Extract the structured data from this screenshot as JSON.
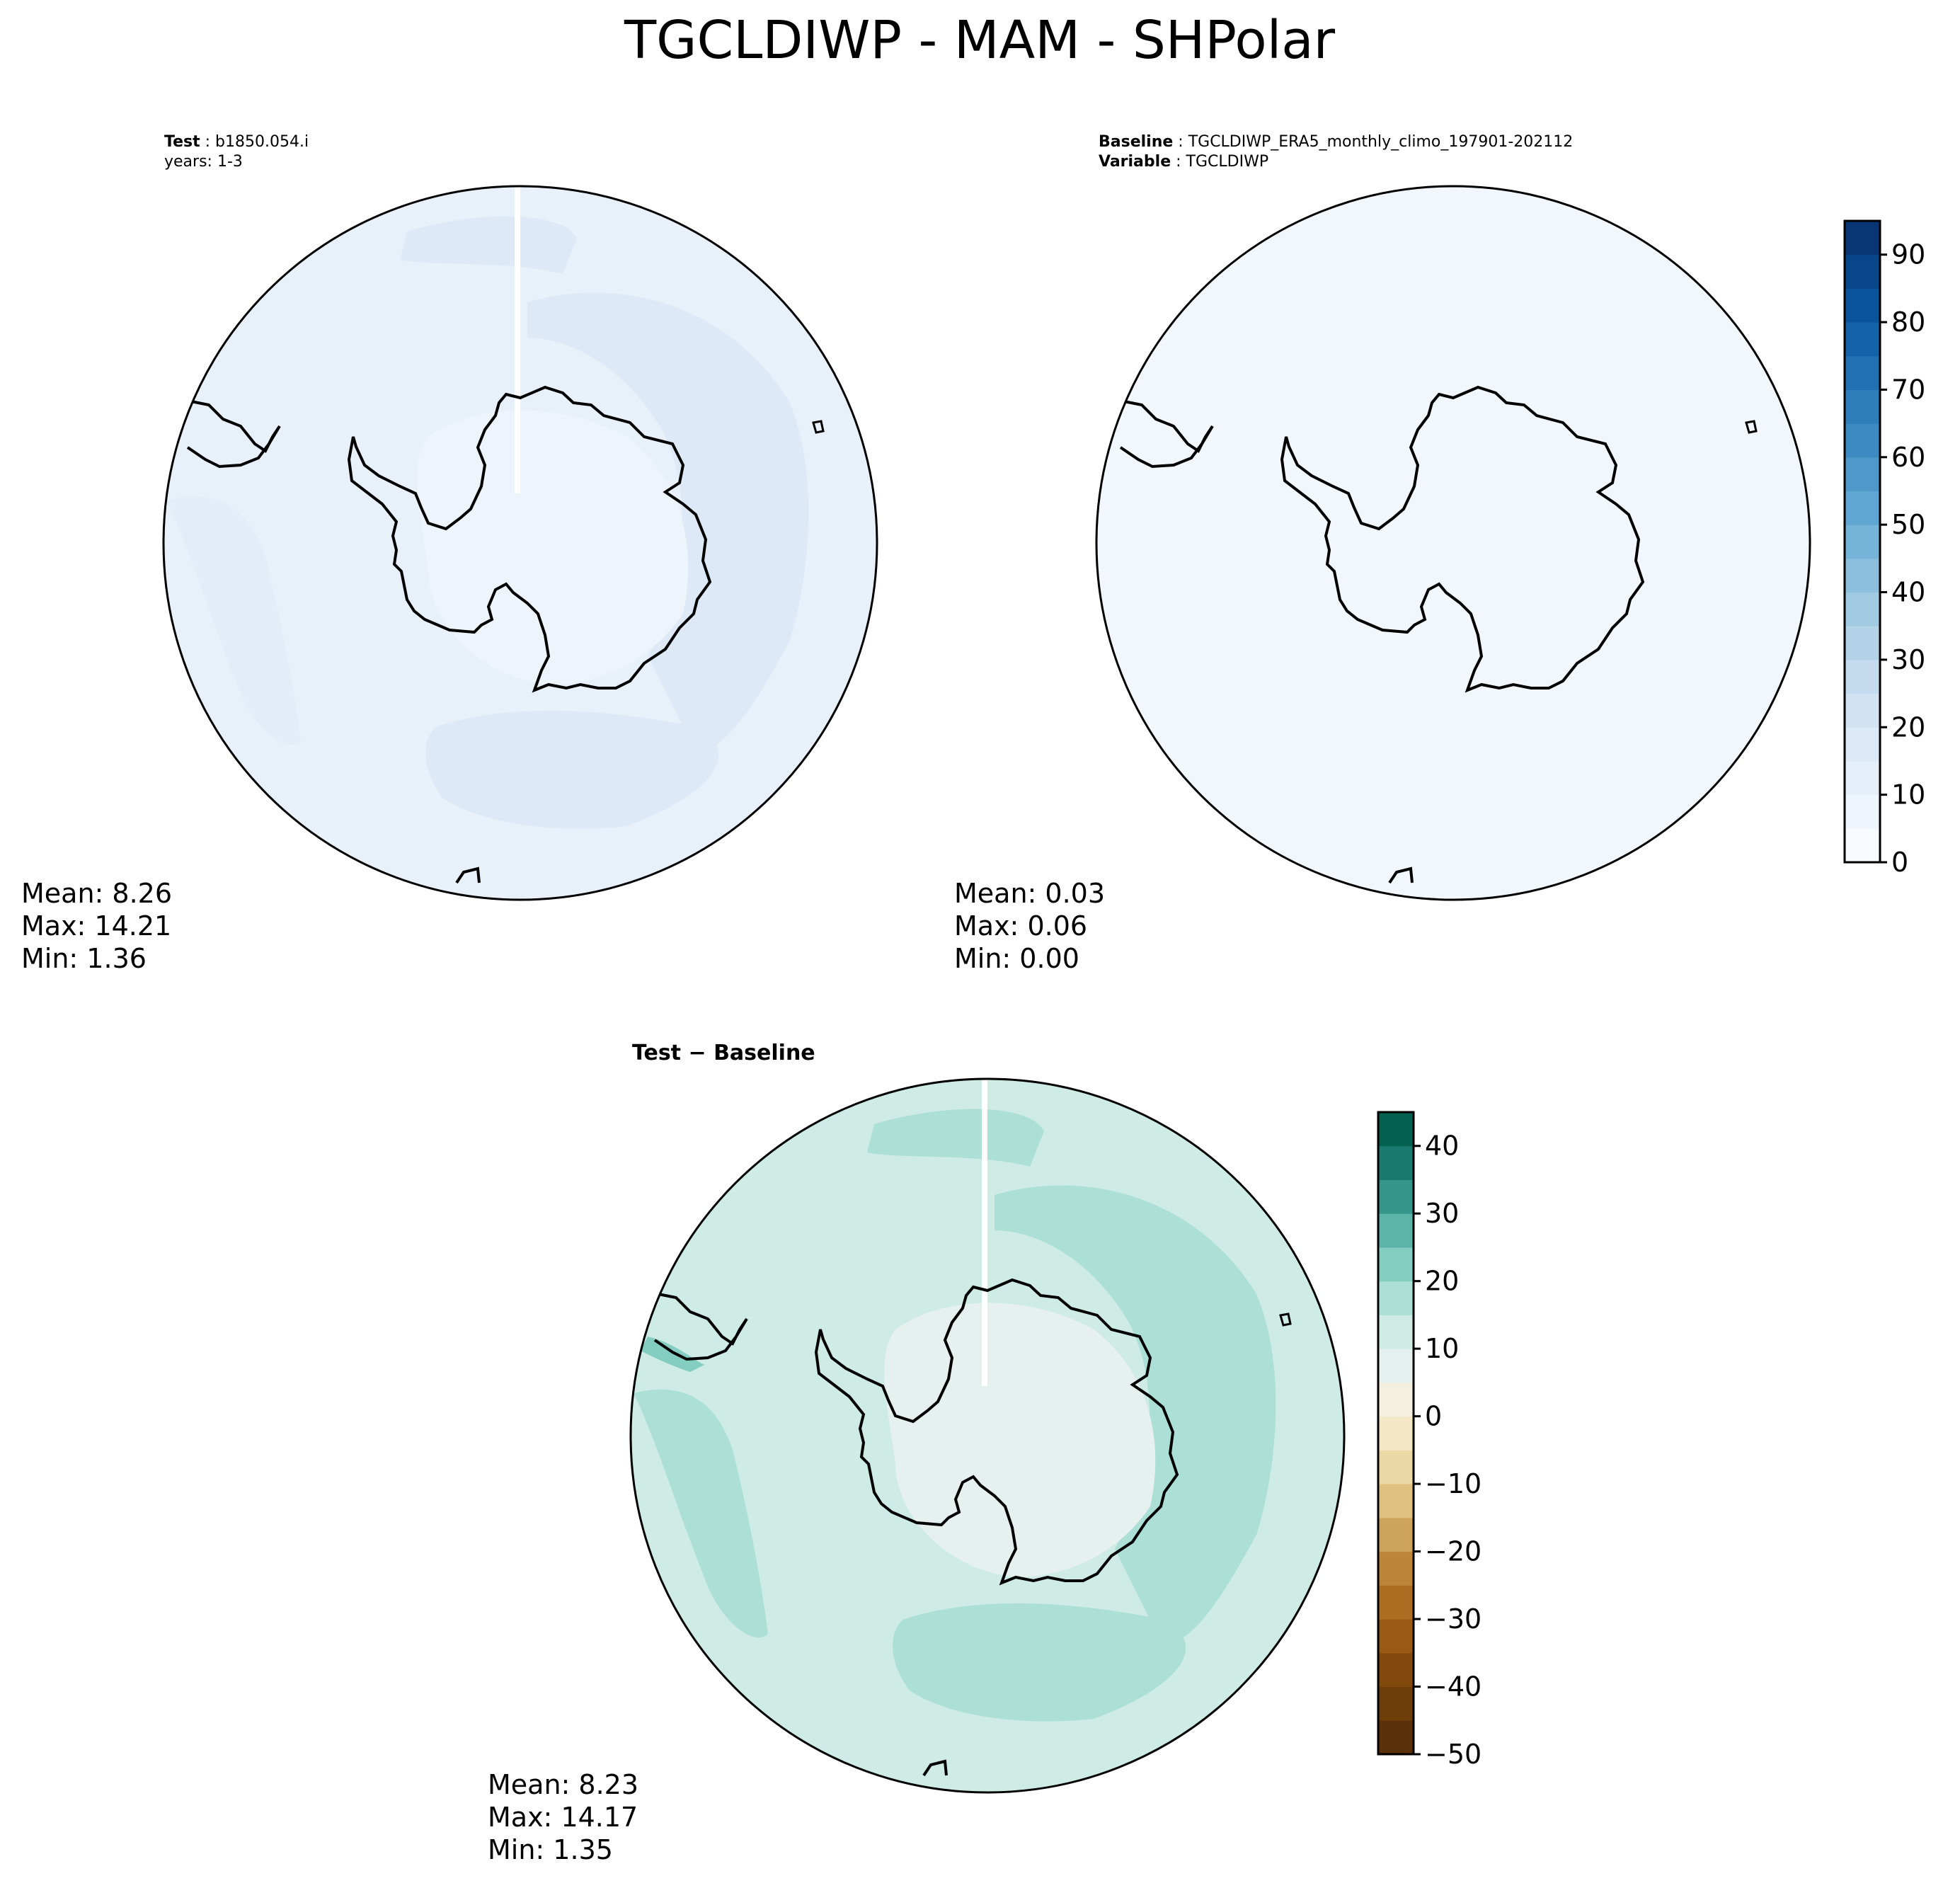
{
  "figure": {
    "title": "TGCLDIWP - MAM - SHPolar"
  },
  "panels": {
    "test": {
      "label_key": "Test",
      "label_value": "b1850.054.i",
      "line2": "years: 1-3",
      "stats": {
        "mean": "Mean:  8.26",
        "max": "Max: 14.21",
        "min": "Min:  1.36"
      }
    },
    "baseline": {
      "label_key": "Baseline",
      "label_value": "TGCLDIWP_ERA5_monthly_climo_197901-202112",
      "line2_key": "Variable",
      "line2_value": "TGCLDIWP",
      "stats": {
        "mean": "Mean:  0.03",
        "max": "Max:  0.06",
        "min": "Min:  0.00"
      }
    },
    "diff": {
      "title_a": "Test",
      "title_sep": " − ",
      "title_b": "Baseline",
      "stats": {
        "mean": "Mean:  8.23",
        "max": "Max: 14.17",
        "min": "Min:  1.35"
      }
    }
  },
  "colorbars": {
    "main": {
      "ticks": [
        "0",
        "10",
        "20",
        "30",
        "40",
        "50",
        "60",
        "70",
        "80",
        "90"
      ],
      "range": [
        0,
        95
      ],
      "colors": [
        "#f7fbff",
        "#eef5fc",
        "#e5eff9",
        "#dce9f6",
        "#d1e2f2",
        "#c4daee",
        "#b4d3e9",
        "#a1cbe2",
        "#8cbfde",
        "#75b3d8",
        "#60a6d2",
        "#4e99ca",
        "#3c8ac2",
        "#2e7ebc",
        "#2170b3",
        "#1462a9",
        "#0a549e",
        "#08458a",
        "#083573"
      ]
    },
    "diff": {
      "ticks": [
        "−50",
        "−40",
        "−30",
        "−20",
        "−10",
        "0",
        "10",
        "20",
        "30",
        "40"
      ],
      "range": [
        -50,
        45
      ],
      "colors": [
        "#5a3108",
        "#6e3e0a",
        "#81490c",
        "#985a14",
        "#ab6e23",
        "#bd8539",
        "#cea35c",
        "#dfc280",
        "#ecd8a5",
        "#f4e7c6",
        "#f5efe0",
        "#e6f1ef",
        "#ceebe5",
        "#ace0d7",
        "#83cdc1",
        "#5cb3a8",
        "#37968c",
        "#1b7a70",
        "#05614f"
      ]
    }
  }
}
